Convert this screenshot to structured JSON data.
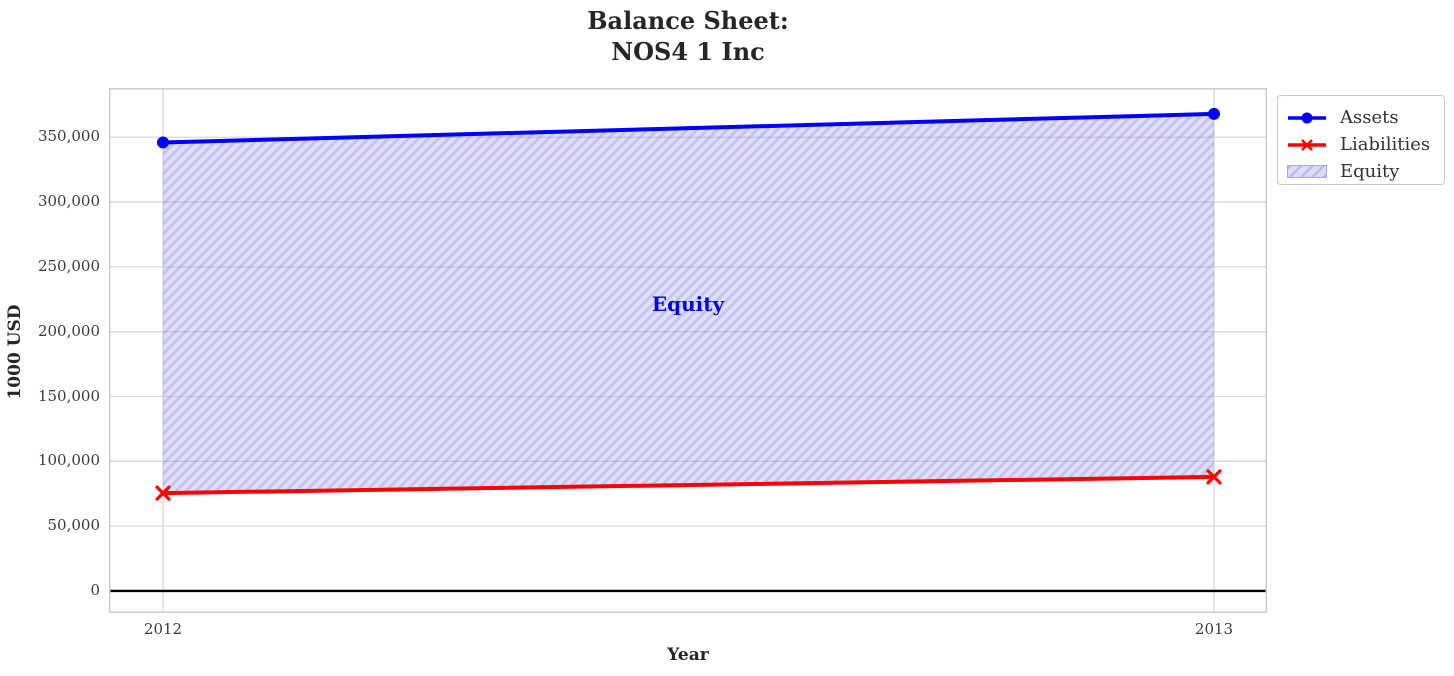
{
  "chart": {
    "title_line1": "Balance Sheet:",
    "title_line2": "NOS4 1 Inc",
    "xlabel": "Year",
    "ylabel": "1000 USD",
    "annotation": "Equity",
    "annotation_color": "#0404e0"
  },
  "legend": {
    "position": "outside upper right",
    "items": [
      {
        "label": "Assets",
        "marker": "line-with-circle",
        "color": "#0000ff"
      },
      {
        "label": "Liabilities",
        "marker": "line-with-x",
        "color": "#ff0000"
      },
      {
        "label": "Equity",
        "marker": "hatched-patch",
        "color": "#dcdcf8"
      }
    ]
  },
  "chart_data": {
    "type": "line",
    "title": "Balance Sheet: NOS4 1 Inc",
    "xlabel": "Year",
    "ylabel": "1000 USD",
    "x": [
      2012,
      2013
    ],
    "xtick_labels": [
      "2012",
      "2013"
    ],
    "series": [
      {
        "name": "Assets",
        "color": "#0000ff",
        "marker": "o",
        "values": [
          346000,
          368000
        ]
      },
      {
        "name": "Liabilities",
        "color": "#ff0000",
        "marker": "x",
        "values": [
          75500,
          88000
        ]
      }
    ],
    "area_between": {
      "name": "Equity",
      "upper": "Assets",
      "lower": "Liabilities",
      "values": [
        270500,
        280000
      ],
      "fill_color": "#dcdcf8",
      "hatch": "///",
      "label": "Equity"
    },
    "yticks": [
      0,
      50000,
      100000,
      150000,
      200000,
      250000,
      300000,
      350000
    ],
    "ytick_labels": [
      "0",
      "50,000",
      "100,000",
      "150,000",
      "200,000",
      "250,000",
      "300,000",
      "350,000"
    ],
    "ylim": [
      -17000,
      388000
    ],
    "grid": true,
    "zero_line": true,
    "grid_color": "#d9d9d9",
    "zero_line_color": "#000000"
  }
}
